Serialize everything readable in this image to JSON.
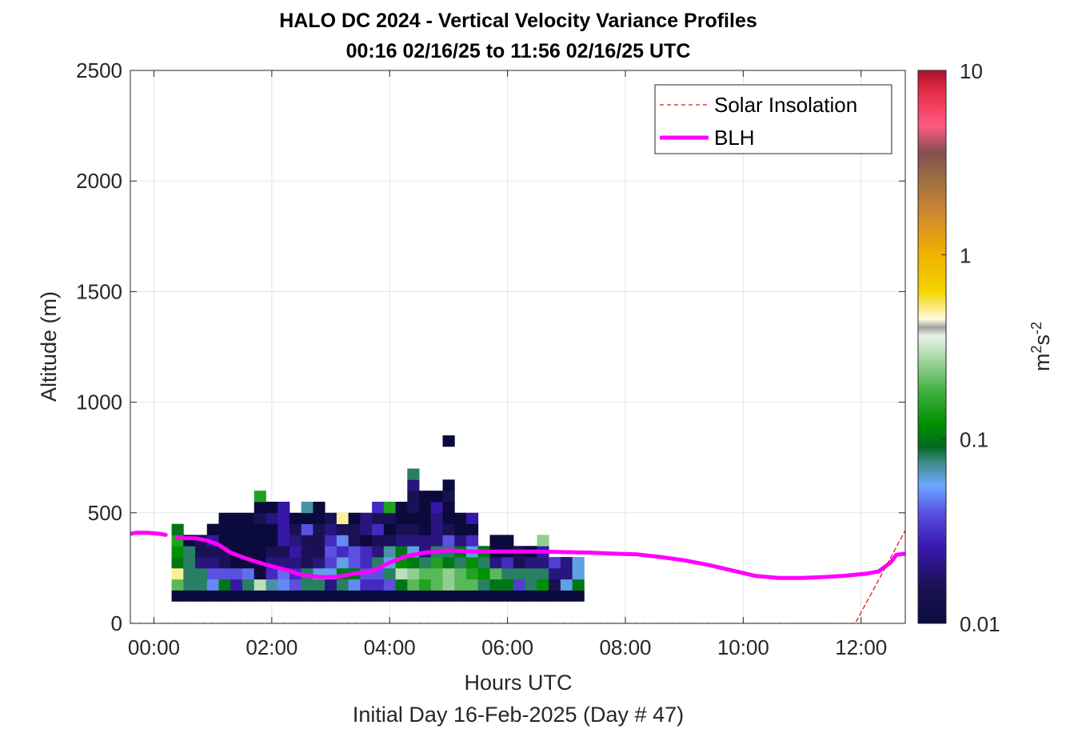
{
  "chart_data": {
    "type": "heatmap",
    "title": "HALO DC 2024 - Vertical Velocity Variance Profiles",
    "subtitle": "00:16 02/16/25 to 11:56 02/16/25  UTC",
    "xlabel": "Hours UTC",
    "xlabel2": "Initial Day 16-Feb-2025 (Day # 47)",
    "ylabel": "Altitude (m)",
    "xlim": [
      -0.4,
      12.75
    ],
    "ylim": [
      0,
      2500
    ],
    "x_ticks": [
      0,
      2,
      4,
      6,
      8,
      10,
      12
    ],
    "x_tick_labels": [
      "00:00",
      "02:00",
      "04:00",
      "06:00",
      "08:00",
      "10:00",
      "12:00"
    ],
    "y_ticks": [
      0,
      500,
      1000,
      1500,
      2000,
      2500
    ],
    "y_tick_labels": [
      "0",
      "500",
      "1000",
      "1500",
      "2000",
      "2500"
    ],
    "grid": true,
    "colorbar": {
      "label_base": "m",
      "label_exp1": "2",
      "label_mid": "s",
      "label_exp2": "-2",
      "scale": "log",
      "range": [
        0.01,
        10
      ],
      "ticks": [
        0.01,
        0.1,
        1,
        10
      ],
      "tick_labels": [
        "0.01",
        "0.1",
        "1",
        "10"
      ]
    },
    "legend": {
      "placement": "top-right",
      "items": [
        {
          "label": "Solar Insolation",
          "color": "#e31a1c",
          "style": "dashed"
        },
        {
          "label": "BLH",
          "color": "#ff00ff",
          "style": "solid"
        }
      ]
    },
    "heatmap": {
      "x_start_hours": 0.3,
      "bin_hours": 0.2,
      "bin_altitude_m": 50,
      "columns": [
        {
          "base": 100,
          "values": [
            0.01,
            0.2,
            0.5,
            0.1,
            0.12,
            0.15,
            0.1
          ]
        },
        {
          "base": 100,
          "values": [
            0.01,
            0.08,
            0.08,
            0.08,
            0.08,
            0.01
          ]
        },
        {
          "base": 100,
          "values": [
            0.01,
            0.08,
            0.08,
            0.02,
            0.015,
            0.015
          ]
        },
        {
          "base": 100,
          "values": [
            0.01,
            0.05,
            0.04,
            0.02,
            0.015,
            0.025,
            0.01
          ]
        },
        {
          "base": 100,
          "values": [
            0.01,
            0.1,
            0.04,
            0.015,
            0.015,
            0.01,
            0.01,
            0.01
          ]
        },
        {
          "base": 100,
          "values": [
            0.01,
            0.025,
            0.04,
            0.01,
            0.01,
            0.01,
            0.01,
            0.01
          ]
        },
        {
          "base": 100,
          "values": [
            0.01,
            0.08,
            0.045,
            0.01,
            0.01,
            0.01,
            0.01,
            0.01
          ]
        },
        {
          "base": 100,
          "values": [
            0.01,
            0.3,
            0.01,
            0.01,
            0.01,
            0.01,
            0.01,
            0.015,
            0.01,
            0.15
          ]
        },
        {
          "base": 100,
          "values": [
            0.01,
            0.07,
            0.03,
            0.02,
            0.015,
            0.01,
            0.01,
            0.02,
            0.01
          ]
        },
        {
          "base": 100,
          "values": [
            0.01,
            0.05,
            0.045,
            0.02,
            0.015,
            0.025,
            0.025,
            0.025,
            0.025
          ]
        },
        {
          "base": 100,
          "values": [
            0.01,
            0.04,
            0.03,
            0.02,
            0.025,
            0.02,
            0.015,
            0.01
          ]
        },
        {
          "base": 100,
          "values": [
            0.01,
            0.08,
            0.08,
            0.015,
            0.015,
            0.015,
            0.04,
            0.01,
            0.07
          ]
        },
        {
          "base": 100,
          "values": [
            0.01,
            0.08,
            0.06,
            0.02,
            0.015,
            0.015,
            0.015,
            0.01,
            0.01
          ]
        },
        {
          "base": 100,
          "values": [
            0.01,
            0.02,
            0.06,
            0.035,
            0.04,
            0.03,
            0.02,
            0.015
          ]
        },
        {
          "base": 100,
          "values": [
            0.01,
            0.08,
            0.1,
            0.06,
            0.03,
            0.05,
            0.015,
            0.5
          ]
        },
        {
          "base": 100,
          "values": [
            0.01,
            0.05,
            0.1,
            0.04,
            0.04,
            0.015,
            0.015,
            0.01
          ]
        },
        {
          "base": 100,
          "values": [
            0.01,
            0.03,
            0.04,
            0.03,
            0.03,
            0.01,
            0.02,
            0.02
          ]
        },
        {
          "base": 100,
          "values": [
            0.01,
            0.03,
            0.04,
            0.08,
            0.02,
            0.015,
            0.03,
            0.015,
            0.03
          ]
        },
        {
          "base": 100,
          "values": [
            0.01,
            0.04,
            0.08,
            0.06,
            0.07,
            0.015,
            0.01,
            0.015,
            0.15
          ]
        },
        {
          "base": 100,
          "values": [
            0.01,
            0.1,
            0.3,
            0.12,
            0.1,
            0.02,
            0.015,
            0.01,
            0.01
          ]
        },
        {
          "base": 100,
          "values": [
            0.01,
            0.2,
            0.25,
            0.1,
            0.06,
            0.02,
            0.015,
            0.01,
            0.015,
            0.015,
            0.02,
            0.08
          ]
        },
        {
          "base": 100,
          "values": [
            0.01,
            0.15,
            0.2,
            0.08,
            0.02,
            0.02,
            0.01,
            0.01,
            0.01,
            0.01
          ]
        },
        {
          "base": 100,
          "values": [
            0.01,
            0.2,
            0.2,
            0.15,
            0.08,
            0.02,
            0.02,
            0.02,
            0.025,
            0.01
          ]
        },
        {
          "base": 100,
          "values": [
            0.01,
            0.25,
            0.25,
            0.1,
            0.08,
            0.04,
            0.015,
            0.01,
            0.01,
            0.015,
            0.01,
            0,
            0,
            0,
            0.01
          ]
        },
        {
          "base": 100,
          "values": [
            0.01,
            0.2,
            0.2,
            0.08,
            0.1,
            0.02,
            0.01,
            0.01
          ]
        },
        {
          "base": 100,
          "values": [
            0.01,
            0.2,
            0.15,
            0.12,
            0.06,
            0.03,
            0.01,
            0.025
          ]
        },
        {
          "base": 100,
          "values": [
            0.01,
            0.08,
            0.12,
            0.08,
            0.1
          ]
        },
        {
          "base": 100,
          "values": [
            0.01,
            0.1,
            0.2,
            0.02,
            0.01,
            0.01
          ]
        },
        {
          "base": 100,
          "values": [
            0.01,
            0.1,
            0.08,
            0.03,
            0.01,
            0.01
          ]
        },
        {
          "base": 100,
          "values": [
            0.01,
            0.035,
            0.08,
            0.015,
            0.015
          ]
        },
        {
          "base": 100,
          "values": [
            0.01,
            0.08,
            0.08,
            0.02,
            0.01
          ]
        },
        {
          "base": 100,
          "values": [
            0.01,
            0.12,
            0.08,
            0.02,
            0.025,
            0.25
          ]
        },
        {
          "base": 100,
          "values": [
            0.01,
            0.015,
            0.02,
            0.035
          ]
        },
        {
          "base": 100,
          "values": [
            0.01,
            0.06,
            0.02,
            0.02
          ]
        },
        {
          "base": 100,
          "values": [
            0.01,
            0.1,
            0.06,
            0.06
          ]
        }
      ]
    },
    "series": [
      {
        "name": "BLH",
        "color": "#ff00ff",
        "x": [
          -0.4,
          -0.3,
          -0.1,
          0.1,
          0.2,
          0.4,
          0.5,
          0.7,
          0.9,
          1.1,
          1.3,
          1.6,
          1.9,
          2.2,
          2.5,
          2.8,
          3.1,
          3.4,
          3.7,
          4.0,
          4.3,
          4.6,
          5.0,
          5.4,
          5.8,
          6.2,
          6.6,
          7.0,
          7.4,
          7.8,
          8.2,
          8.6,
          9.0,
          9.4,
          9.8,
          10.2,
          10.6,
          11.0,
          11.4,
          11.7,
          11.9,
          12.1,
          12.3,
          12.5,
          12.6,
          12.75
        ],
        "y": [
          405,
          410,
          410,
          405,
          400,
          390,
          385,
          385,
          375,
          355,
          320,
          290,
          265,
          245,
          220,
          210,
          210,
          225,
          235,
          275,
          305,
          320,
          330,
          325,
          325,
          325,
          325,
          322,
          320,
          315,
          312,
          300,
          285,
          265,
          240,
          215,
          205,
          205,
          210,
          215,
          220,
          225,
          235,
          275,
          310,
          315
        ],
        "gaps_after_x": [
          0.2
        ]
      },
      {
        "name": "Solar Insolation",
        "color": "#e31a1c",
        "x": [
          -0.4,
          11.9,
          12.75
        ],
        "y": [
          0,
          0,
          420
        ]
      }
    ]
  }
}
